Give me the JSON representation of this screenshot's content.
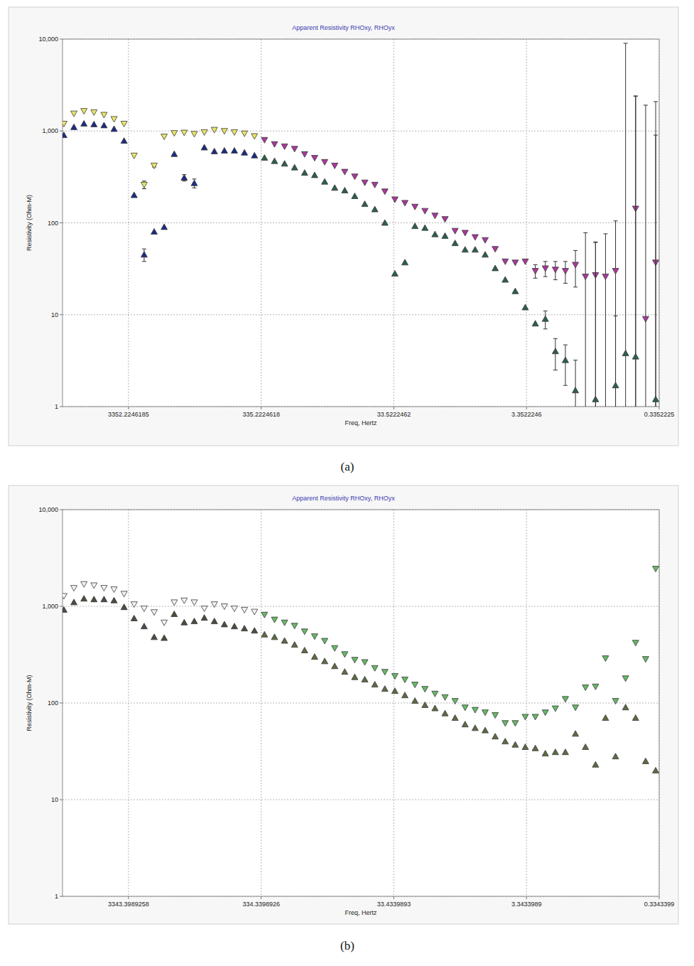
{
  "chart_data": [
    {
      "type": "scatter",
      "title": "Apparent Resistivity RHOxy, RHOyx",
      "x_label": "Freq, Hertz",
      "y_label": "Resistivity (Ohm-M)",
      "caption": "(a)",
      "log": true,
      "grid": true,
      "xlim": [
        10534,
        0.3352225
      ],
      "xticks": [
        3352.2246185,
        335.2224618,
        33.5222462,
        3.3522246,
        0.3352225
      ],
      "ylim": [
        1,
        10000
      ],
      "yticks": [
        1,
        10,
        100,
        {
          "value": 1000,
          "label": "1,000"
        },
        {
          "value": 10000,
          "label": "10,000"
        }
      ],
      "x": [
        10285,
        8643,
        7261,
        6101,
        5126,
        4307,
        3619,
        3041,
        2555,
        2147,
        1804,
        1515,
        1274,
        1070,
        899,
        755.3,
        634.7,
        533.3,
        448.1,
        376.5,
        316.4,
        265.8,
        223.4,
        187.7,
        157.7,
        132.5,
        111.3,
        93.54,
        78.6,
        66.04,
        55.49,
        46.63,
        39.17,
        32.92,
        27.66,
        23.24,
        19.53,
        16.41,
        13.79,
        11.58,
        9.732,
        8.177,
        6.871,
        5.773,
        4.851,
        4.076,
        3.425,
        2.877,
        2.418,
        2.031,
        1.707,
        1.434,
        1.205,
        1.012,
        0.8509,
        0.715,
        0.6007,
        0.5047,
        0.4241,
        0.3563
      ],
      "series": [
        {
          "marker": "triangle-down",
          "values": [
            1200,
            1550,
            1650,
            1600,
            1500,
            1350,
            1200,
            540,
            260,
            420,
            870,
            950,
            960,
            930,
            970,
            1030,
            1000,
            970,
            940,
            880,
            800,
            720,
            680,
            640,
            560,
            510,
            460,
            420,
            360,
            320,
            275,
            260,
            220,
            180,
            165,
            150,
            135,
            120,
            110,
            82,
            78,
            70,
            65,
            52,
            38,
            37,
            38,
            30,
            32,
            31,
            30,
            35,
            26,
            27,
            26,
            30,
            null,
            143,
            9,
            37
          ],
          "errors": [
            null,
            null,
            null,
            null,
            null,
            null,
            null,
            null,
            25,
            15,
            null,
            null,
            null,
            null,
            null,
            null,
            null,
            null,
            null,
            null,
            null,
            null,
            null,
            null,
            null,
            null,
            null,
            null,
            null,
            null,
            null,
            null,
            null,
            null,
            null,
            null,
            null,
            null,
            null,
            null,
            null,
            null,
            null,
            null,
            null,
            null,
            null,
            5,
            6,
            7,
            8,
            15,
            52,
            35,
            50,
            75,
            null,
            2250,
            1900,
            2050
          ],
          "colors": [
            "#e8e36a",
            "#e8e36a",
            "#e8e36a",
            "#e8e36a",
            "#e8e36a",
            "#e8e36a",
            "#e8e36a",
            "#e8e36a",
            "#e8e36a",
            "#e8e36a",
            "#e8e36a",
            "#e8e36a",
            "#e8e36a",
            "#e8e36a",
            "#e8e36a",
            "#e8e36a",
            "#e8e36a",
            "#e8e36a",
            "#e8e36a",
            "#e8e36a",
            "#a8389c",
            "#a8389c",
            "#a8389c",
            "#a8389c",
            "#a8389c",
            "#a8389c",
            "#a8389c",
            "#a8389c",
            "#a8389c",
            "#a8389c",
            "#a8389c",
            "#a8389c",
            "#a8389c",
            "#a8389c",
            "#a8389c",
            "#a8389c",
            "#a8389c",
            "#a8389c",
            "#a8389c",
            "#a8389c",
            "#a8389c",
            "#a8389c",
            "#a8389c",
            "#a8389c",
            "#a8389c",
            "#a8389c",
            "#a8389c",
            "#a8389c",
            "#a8389c",
            "#a8389c",
            "#a8389c",
            "#a8389c",
            "#a8389c",
            "#a8389c",
            "#a8389c",
            "#a8389c",
            "#a8389c",
            "#a8389c",
            "#a8389c",
            "#a8389c"
          ]
        },
        {
          "marker": "triangle-up",
          "values": [
            900,
            1100,
            1200,
            1180,
            1150,
            1050,
            780,
            200,
            45,
            80,
            90,
            560,
            310,
            270,
            660,
            600,
            610,
            610,
            580,
            540,
            510,
            470,
            440,
            400,
            350,
            330,
            280,
            240,
            225,
            195,
            160,
            140,
            100,
            28,
            37,
            92,
            88,
            75,
            72,
            60,
            51,
            51,
            45,
            32,
            24,
            18,
            12,
            8,
            9,
            4,
            3.2,
            1.5,
            null,
            1.2,
            null,
            1.7,
            3.8,
            3.5,
            null,
            1.2
          ],
          "errors": [
            null,
            null,
            null,
            null,
            null,
            null,
            null,
            null,
            7,
            null,
            null,
            null,
            25,
            30,
            null,
            null,
            null,
            null,
            null,
            null,
            null,
            null,
            null,
            null,
            null,
            null,
            null,
            null,
            null,
            null,
            null,
            null,
            null,
            null,
            null,
            null,
            null,
            null,
            null,
            null,
            null,
            null,
            null,
            null,
            null,
            null,
            null,
            null,
            2,
            1.5,
            1.5,
            1.7,
            null,
            60,
            null,
            8,
            9000,
            2400,
            null,
            900
          ],
          "colors": [
            "#1c2b80",
            "#1c2b80",
            "#1c2b80",
            "#1c2b80",
            "#1c2b80",
            "#1c2b80",
            "#1c2b80",
            "#1c2b80",
            "#1c2b80",
            "#1c2b80",
            "#1c2b80",
            "#1c2b80",
            "#1c2b80",
            "#1c2b80",
            "#1c2b80",
            "#1c2b80",
            "#1c2b80",
            "#1c2b80",
            "#1c2b80",
            "#1c2b80",
            "#2d5e4c",
            "#2d5e4c",
            "#2d5e4c",
            "#2d5e4c",
            "#2d5e4c",
            "#2d5e4c",
            "#2d5e4c",
            "#2d5e4c",
            "#2d5e4c",
            "#2d5e4c",
            "#2d5e4c",
            "#2d5e4c",
            "#2d5e4c",
            "#2d5e4c",
            "#2d5e4c",
            "#2d5e4c",
            "#2d5e4c",
            "#2d5e4c",
            "#2d5e4c",
            "#2d5e4c",
            "#2d5e4c",
            "#2d5e4c",
            "#2d5e4c",
            "#2d5e4c",
            "#2d5e4c",
            "#2d5e4c",
            "#2d5e4c",
            "#2d5e4c",
            "#2d5e4c",
            "#2d5e4c",
            "#2d5e4c",
            "#2d5e4c",
            "#2d5e4c",
            "#2d5e4c",
            "#2d5e4c",
            "#2d5e4c",
            "#2d5e4c",
            "#2d5e4c",
            "#2d5e4c",
            "#2d5e4c"
          ]
        }
      ]
    },
    {
      "type": "scatter",
      "title": "Apparent Resistivity RHOxy, RHOyx",
      "x_label": "Freq, Hertz",
      "y_label": "Resistivity (Ohm-M)",
      "caption": "(b)",
      "log": true,
      "grid": true,
      "xlim": [
        10507,
        0.3343399
      ],
      "xticks": [
        3343.3989258,
        334.3398926,
        33.4339893,
        3.3433989,
        0.3343399
      ],
      "ylim": [
        1,
        10000
      ],
      "yticks": [
        1,
        10,
        100,
        {
          "value": 1000,
          "label": "1,000"
        },
        {
          "value": 10000,
          "label": "10,000"
        }
      ],
      "x": [
        10258,
        8620,
        7242,
        6085,
        5113,
        4296,
        3609,
        3033,
        2548,
        2141,
        1799,
        1511,
        1271,
        1067,
        896.6,
        753.3,
        633,
        531.9,
        446.9,
        375.5,
        315.6,
        265.1,
        222.8,
        187.2,
        157.3,
        132.2,
        111,
        93.3,
        78.4,
        65.87,
        55.35,
        46.51,
        39.07,
        32.83,
        27.59,
        23.18,
        19.48,
        16.37,
        13.75,
        11.55,
        9.707,
        8.156,
        6.853,
        5.758,
        4.838,
        4.065,
        3.416,
        2.87,
        2.412,
        2.026,
        1.703,
        1.43,
        1.202,
        1.009,
        0.8487,
        0.7131,
        0.5991,
        0.5034,
        0.423,
        0.3554
      ],
      "series": [
        {
          "marker": "triangle-down",
          "values": [
            1280,
            1550,
            1700,
            1650,
            1550,
            1500,
            1350,
            1050,
            950,
            870,
            680,
            1100,
            1150,
            1100,
            950,
            1050,
            1000,
            950,
            920,
            880,
            820,
            730,
            680,
            630,
            550,
            490,
            440,
            370,
            320,
            280,
            265,
            230,
            210,
            190,
            175,
            155,
            140,
            125,
            115,
            105,
            90,
            85,
            80,
            75,
            62,
            62,
            72,
            72,
            80,
            88,
            110,
            90,
            145,
            148,
            290,
            105,
            180,
            420,
            285,
            2450
          ],
          "colors": [
            "#f2f2f2",
            "#f2f2f2",
            "#f2f2f2",
            "#f2f2f2",
            "#f2f2f2",
            "#f2f2f2",
            "#f2f2f2",
            "#f2f2f2",
            "#f2f2f2",
            "#f2f2f2",
            "#f2f2f2",
            "#f2f2f2",
            "#f2f2f2",
            "#f2f2f2",
            "#f2f2f2",
            "#f2f2f2",
            "#f2f2f2",
            "#f2f2f2",
            "#f2f2f2",
            "#f2f2f2",
            "#66b866",
            "#66b866",
            "#66b866",
            "#66b866",
            "#66b866",
            "#66b866",
            "#66b866",
            "#66b866",
            "#66b866",
            "#66b866",
            "#66b866",
            "#66b866",
            "#66b866",
            "#66b866",
            "#66b866",
            "#66b866",
            "#66b866",
            "#66b866",
            "#66b866",
            "#66b866",
            "#66b866",
            "#66b866",
            "#66b866",
            "#66b866",
            "#66b866",
            "#66b866",
            "#66b866",
            "#66b866",
            "#66b866",
            "#66b866",
            "#66b866",
            "#66b866",
            "#66b866",
            "#66b866",
            "#66b866",
            "#66b866",
            "#66b866",
            "#66b866",
            "#66b866",
            "#66b866"
          ]
        },
        {
          "marker": "triangle-up",
          "values": [
            920,
            1100,
            1200,
            1180,
            1180,
            1150,
            980,
            750,
            620,
            480,
            470,
            830,
            680,
            700,
            760,
            700,
            650,
            620,
            590,
            560,
            510,
            480,
            440,
            400,
            350,
            300,
            270,
            240,
            210,
            185,
            175,
            155,
            140,
            133,
            120,
            105,
            95,
            88,
            78,
            70,
            60,
            55,
            52,
            45,
            40,
            37,
            35,
            34,
            30,
            31,
            31,
            48,
            35,
            23,
            70,
            28,
            90,
            70,
            25,
            20
          ],
          "colors": [
            "#4b4b3f",
            "#4b4b3f",
            "#4b4b3f",
            "#4b4b3f",
            "#4b4b3f",
            "#4b4b3f",
            "#4b4b3f",
            "#4b4b3f",
            "#4b4b3f",
            "#4b4b3f",
            "#4b4b3f",
            "#4b4b3f",
            "#4b4b3f",
            "#4b4b3f",
            "#4b4b3f",
            "#4b4b3f",
            "#4b4b3f",
            "#4b4b3f",
            "#4b4b3f",
            "#4b4b3f",
            "#5c6b45",
            "#5c6b45",
            "#5c6b45",
            "#5c6b45",
            "#5c6b45",
            "#5c6b45",
            "#5c6b45",
            "#5c6b45",
            "#5c6b45",
            "#5c6b45",
            "#5c6b45",
            "#5c6b45",
            "#5c6b45",
            "#5c6b45",
            "#5c6b45",
            "#5c6b45",
            "#5c6b45",
            "#5c6b45",
            "#5c6b45",
            "#5c6b45",
            "#5c6b45",
            "#5c6b45",
            "#5c6b45",
            "#5c6b45",
            "#5c6b45",
            "#5c6b45",
            "#5c6b45",
            "#5c6b45",
            "#5c6b45",
            "#5c6b45",
            "#5c6b45",
            "#5c6b45",
            "#5c6b45",
            "#5c6b45",
            "#5c6b45",
            "#5c6b45",
            "#5c6b45",
            "#5c6b45",
            "#5c6b45",
            "#5c6b45"
          ]
        }
      ]
    }
  ]
}
